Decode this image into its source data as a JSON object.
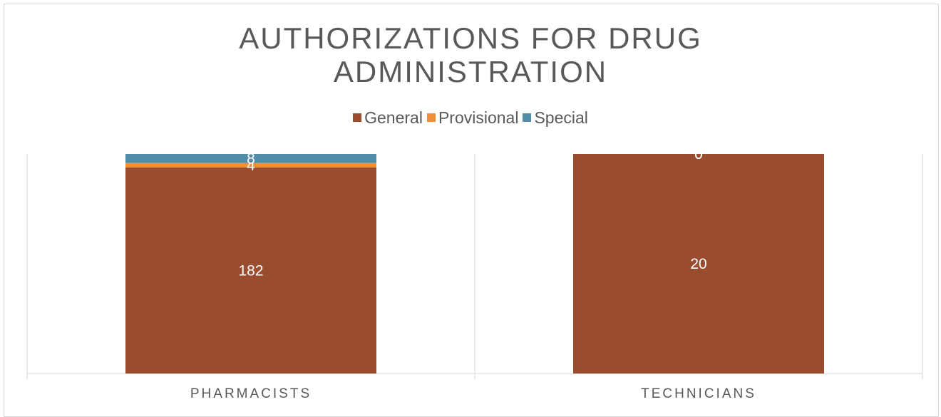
{
  "chart_data": {
    "type": "bar",
    "stacked": true,
    "title": "AUTHORIZATIONS FOR DRUG ADMINISTRATION",
    "categories": [
      "PHARMACISTS",
      "TECHNICIANS"
    ],
    "series": [
      {
        "name": "General",
        "values": [
          182,
          20
        ],
        "color": "#9a4c2f"
      },
      {
        "name": "Provisional",
        "values": [
          4,
          0
        ],
        "color": "#f28e34"
      },
      {
        "name": "Special",
        "values": [
          8,
          0
        ],
        "color": "#538ca6"
      }
    ],
    "legend_position": "top",
    "grid": false
  }
}
